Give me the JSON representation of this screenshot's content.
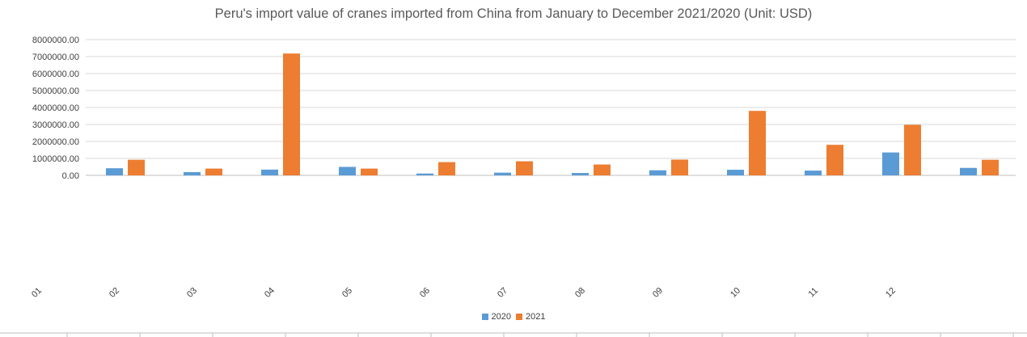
{
  "chart_data": {
    "type": "bar",
    "title": "Peru's import value of cranes imported from China from January to December 2021/2020 (Unit: USD)",
    "xlabel": "",
    "ylabel": "",
    "categories": [
      "01",
      "02",
      "03",
      "04",
      "05",
      "06",
      "07",
      "08",
      "09",
      "10",
      "11",
      "12"
    ],
    "y_ticks": [
      "0.00",
      "1000000.00",
      "2000000.00",
      "3000000.00",
      "4000000.00",
      "5000000.00",
      "6000000.00",
      "7000000.00",
      "8000000.00"
    ],
    "ylim": [
      0,
      8000000
    ],
    "grid": true,
    "legend_position": "bottom",
    "series": [
      {
        "name": "2020",
        "color": "#5B9BD5",
        "values": [
          420000,
          190000,
          340000,
          500000,
          110000,
          160000,
          140000,
          300000,
          330000,
          280000,
          1350000,
          440000
        ]
      },
      {
        "name": "2021",
        "color": "#ED7D31",
        "values": [
          920000,
          400000,
          7180000,
          400000,
          780000,
          830000,
          640000,
          930000,
          3800000,
          1800000,
          2980000,
          920000
        ]
      }
    ]
  }
}
